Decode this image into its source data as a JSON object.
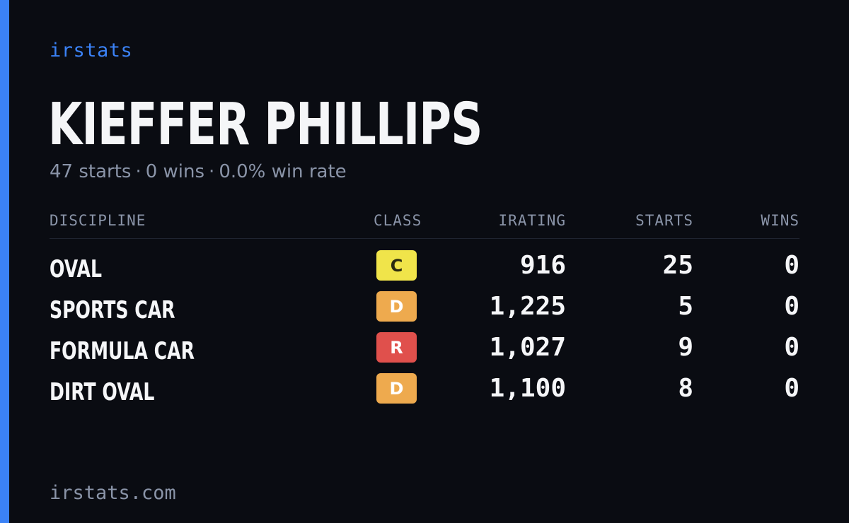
{
  "brand": "irstats",
  "driver": {
    "name": "KIEFFER PHILLIPS"
  },
  "summary": {
    "starts": "47 starts",
    "wins": "0 wins",
    "win_rate": "0.0% win rate",
    "separator": "·"
  },
  "table": {
    "columns": [
      "DISCIPLINE",
      "CLASS",
      "IRATING",
      "STARTS",
      "WINS"
    ],
    "rows": [
      {
        "discipline": "OVAL",
        "class": "C",
        "class_bg": "#f0e44a",
        "class_fg": "#2a2a10",
        "irating": "916",
        "starts": "25",
        "wins": "0"
      },
      {
        "discipline": "SPORTS CAR",
        "class": "D",
        "class_bg": "#eeaa4e",
        "class_fg": "#ffffff",
        "irating": "1,225",
        "starts": "5",
        "wins": "0"
      },
      {
        "discipline": "FORMULA CAR",
        "class": "R",
        "class_bg": "#e0504c",
        "class_fg": "#ffffff",
        "irating": "1,027",
        "starts": "9",
        "wins": "0"
      },
      {
        "discipline": "DIRT OVAL",
        "class": "D",
        "class_bg": "#eeaa4e",
        "class_fg": "#ffffff",
        "irating": "1,100",
        "starts": "8",
        "wins": "0"
      }
    ]
  },
  "footer": {
    "url": "irstats.com"
  },
  "colors": {
    "accent": "#3b82f6",
    "background": "#0a0c12",
    "muted_text": "#8a94a8",
    "primary_text": "#f5f6f8"
  }
}
